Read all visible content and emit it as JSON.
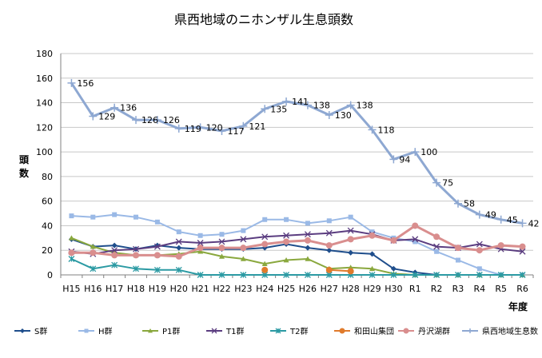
{
  "chart_data": {
    "type": "line",
    "title": "県西地域のニホンザル生息頭数",
    "xlabel": "年度",
    "ylabel": "頭数",
    "ylim": [
      0,
      180
    ],
    "ytick_step": 20,
    "grid": "horizontal",
    "legend_position": "bottom",
    "categories": [
      "H15",
      "H16",
      "H17",
      "H18",
      "H19",
      "H20",
      "H21",
      "H22",
      "H23",
      "H24",
      "H25",
      "H26",
      "H27",
      "H28",
      "H29",
      "H30",
      "R1",
      "R2",
      "R3",
      "R4",
      "R5",
      "R6"
    ],
    "series": [
      {
        "name": "S群",
        "color": "#1f4e8c",
        "marker": "diamond",
        "values": [
          29,
          23,
          24,
          21,
          24,
          22,
          21,
          21,
          21,
          22,
          25,
          22,
          20,
          18,
          17,
          5,
          2,
          0,
          0,
          0,
          0,
          0
        ]
      },
      {
        "name": "H群",
        "color": "#9ab9e6",
        "marker": "square",
        "values": [
          48,
          47,
          49,
          47,
          43,
          35,
          32,
          33,
          36,
          45,
          45,
          42,
          44,
          47,
          35,
          30,
          27,
          19,
          12,
          5,
          0,
          0
        ]
      },
      {
        "name": "P1群",
        "color": "#8aa83e",
        "marker": "triangle",
        "values": [
          30,
          23,
          18,
          16,
          16,
          17,
          19,
          15,
          13,
          9,
          12,
          13,
          5,
          6,
          5,
          1,
          0,
          0,
          0,
          0,
          0,
          0
        ]
      },
      {
        "name": "T1群",
        "color": "#5b3d80",
        "marker": "x",
        "values": [
          19,
          17,
          20,
          21,
          23,
          27,
          26,
          27,
          29,
          31,
          32,
          33,
          34,
          36,
          33,
          28,
          29,
          23,
          22,
          25,
          21,
          19
        ]
      },
      {
        "name": "T2群",
        "color": "#2b9aa3",
        "marker": "asterisk",
        "values": [
          13,
          5,
          8,
          5,
          4,
          4,
          0,
          0,
          0,
          0,
          0,
          0,
          0,
          0,
          0,
          0,
          0,
          0,
          0,
          0,
          0,
          0
        ]
      },
      {
        "name": "和田山集団",
        "color": "#e07b2c",
        "marker": "circle",
        "values": [
          null,
          null,
          null,
          null,
          null,
          null,
          null,
          null,
          null,
          4,
          null,
          null,
          4,
          3,
          null,
          null,
          null,
          null,
          null,
          null,
          null,
          null
        ]
      },
      {
        "name": "丹沢湖群",
        "color": "#d98e8e",
        "marker": "circle",
        "values": [
          18,
          18,
          16,
          16,
          16,
          15,
          22,
          22,
          22,
          25,
          27,
          28,
          24,
          29,
          32,
          28,
          40,
          31,
          22,
          20,
          24,
          23
        ]
      },
      {
        "name": "県西地域生息数",
        "color": "#8ea8d2",
        "marker": "plus",
        "values": [
          156,
          129,
          136,
          126,
          126,
          119,
          120,
          117,
          121,
          135,
          141,
          138,
          130,
          138,
          118,
          94,
          100,
          75,
          58,
          49,
          45,
          42
        ]
      }
    ],
    "data_labels": [
      156,
      129,
      136,
      126,
      126,
      119,
      120,
      117,
      121,
      135,
      141,
      138,
      130,
      138,
      118,
      94,
      100,
      75,
      58,
      49,
      45,
      42
    ]
  }
}
